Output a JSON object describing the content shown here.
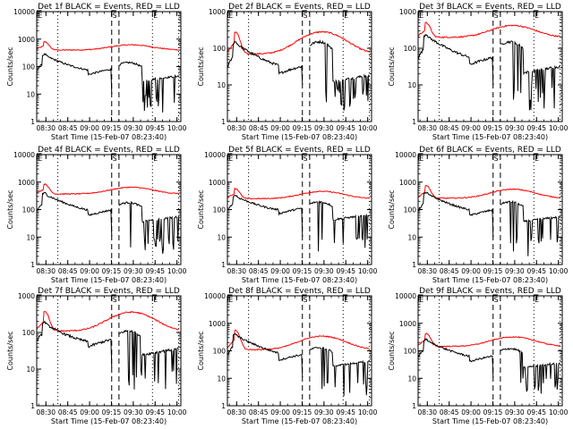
{
  "window": {
    "title": "HXR detector count rate plots"
  },
  "chart_data": [
    {
      "type": "line",
      "title": "Det 1f BLACK = Events, RED = LLD",
      "xlabel": "Start Time (15-Feb-07 08:23:40)",
      "ylabel": "Counts/sec",
      "ylim": [
        1,
        10000
      ],
      "yscale": "log",
      "series": [
        {
          "name": "Events",
          "color": "#000000"
        },
        {
          "name": "LLD",
          "color": "#ff0000"
        }
      ],
      "profile": {
        "events": {
          "base": 50,
          "peak": 280,
          "mid": 140
        },
        "lld": {
          "base": 400,
          "peak": 800,
          "mid": 620
        }
      }
    },
    {
      "type": "line",
      "title": "Det 2f BLACK = Events, RED = LLD",
      "xlabel": "Start Time (15-Feb-07 08:23:40)",
      "ylabel": "Counts/sec",
      "ylim": [
        1,
        1000
      ],
      "yscale": "log",
      "series": [
        {
          "name": "Events",
          "color": "#000000"
        },
        {
          "name": "LLD",
          "color": "#ff0000"
        }
      ],
      "profile": {
        "events": {
          "base": 20,
          "peak": 150,
          "mid": 150
        },
        "lld": {
          "base": 70,
          "peak": 280,
          "mid": 280
        }
      }
    },
    {
      "type": "line",
      "title": "Det 3f BLACK = Events, RED = LLD",
      "xlabel": "Start Time (15-Feb-07 08:23:40)",
      "ylabel": "Counts/sec",
      "ylim": [
        1,
        1000
      ],
      "yscale": "log",
      "series": [
        {
          "name": "Events",
          "color": "#000000"
        },
        {
          "name": "LLD",
          "color": "#ff0000"
        }
      ],
      "profile": {
        "events": {
          "base": 35,
          "peak": 240,
          "mid": 150
        },
        "lld": {
          "base": 200,
          "peak": 500,
          "mid": 420
        }
      }
    },
    {
      "type": "line",
      "title": "Det 4f BLACK = Events, RED = LLD",
      "xlabel": "Start Time (15-Feb-07 08:23:40)",
      "ylabel": "Counts/sec",
      "ylim": [
        1,
        10000
      ],
      "yscale": "log",
      "series": [
        {
          "name": "Events",
          "color": "#000000"
        },
        {
          "name": "LLD",
          "color": "#ff0000"
        }
      ],
      "profile": {
        "events": {
          "base": 60,
          "peak": 400,
          "mid": 180
        },
        "lld": {
          "base": 370,
          "peak": 850,
          "mid": 650
        }
      }
    },
    {
      "type": "line",
      "title": "Det 5f BLACK = Events, RED = LLD",
      "xlabel": "Start Time (15-Feb-07 08:23:40)",
      "ylabel": "Counts/sec",
      "ylim": [
        1,
        10000
      ],
      "yscale": "log",
      "series": [
        {
          "name": "Events",
          "color": "#000000"
        },
        {
          "name": "LLD",
          "color": "#ff0000"
        }
      ],
      "profile": {
        "events": {
          "base": 70,
          "peak": 330,
          "mid": 190
        },
        "lld": {
          "base": 250,
          "peak": 580,
          "mid": 460
        }
      }
    },
    {
      "type": "line",
      "title": "Det 6f BLACK = Events, RED = LLD",
      "xlabel": "Start Time (15-Feb-07 08:23:40)",
      "ylabel": "Counts/sec",
      "ylim": [
        1,
        10000
      ],
      "yscale": "log",
      "series": [
        {
          "name": "Events",
          "color": "#000000"
        },
        {
          "name": "LLD",
          "color": "#ff0000"
        }
      ],
      "profile": {
        "events": {
          "base": 60,
          "peak": 420,
          "mid": 190
        },
        "lld": {
          "base": 260,
          "peak": 750,
          "mid": 550
        }
      }
    },
    {
      "type": "line",
      "title": "Det 7f BLACK = Events, RED = LLD",
      "xlabel": "Start Time (15-Feb-07 08:23:40)",
      "ylabel": "Counts/sec",
      "ylim": [
        1,
        1000
      ],
      "yscale": "log",
      "series": [
        {
          "name": "Events",
          "color": "#000000"
        },
        {
          "name": "LLD",
          "color": "#ff0000"
        }
      ],
      "profile": {
        "events": {
          "base": 40,
          "peak": 190,
          "mid": 110
        },
        "lld": {
          "base": 110,
          "peak": 380,
          "mid": 360
        }
      }
    },
    {
      "type": "line",
      "title": "Det 8f BLACK = Events, RED = LLD",
      "xlabel": "Start Time (15-Feb-07 08:23:40)",
      "ylabel": "Counts/sec",
      "ylim": [
        1,
        10000
      ],
      "yscale": "log",
      "series": [
        {
          "name": "Events",
          "color": "#000000"
        },
        {
          "name": "LLD",
          "color": "#ff0000"
        }
      ],
      "profile": {
        "events": {
          "base": 45,
          "peak": 400,
          "mid": 130
        },
        "lld": {
          "base": 110,
          "peak": 550,
          "mid": 340
        }
      }
    },
    {
      "type": "line",
      "title": "Det 9f BLACK = Events, RED = LLD",
      "xlabel": "Start Time (15-Feb-07 08:23:40)",
      "ylabel": "Counts/sec",
      "ylim": [
        1,
        10000
      ],
      "yscale": "log",
      "series": [
        {
          "name": "Events",
          "color": "#000000"
        },
        {
          "name": "LLD",
          "color": "#ff0000"
        }
      ],
      "profile": {
        "events": {
          "base": 40,
          "peak": 260,
          "mid": 120
        },
        "lld": {
          "base": 145,
          "peak": 430,
          "mid": 320
        }
      }
    }
  ],
  "shared": {
    "xticks": [
      "08:30",
      "08:45",
      "09:00",
      "09:15",
      "09:30",
      "09:45",
      "10:00"
    ],
    "xtick_minutes": [
      6.33,
      21.33,
      36.33,
      51.33,
      66.33,
      81.33,
      96.33
    ],
    "x_range_minutes": [
      0,
      99
    ],
    "yticks_10000": [
      "1",
      "10",
      "100",
      "1000",
      "10000"
    ],
    "yticks_1000": [
      "1",
      "10",
      "100",
      "1000"
    ],
    "markers": {
      "E": "E",
      "S": "S"
    },
    "dotted_lines_min": [
      14.5,
      79.5,
      97.5
    ],
    "dashed_lines_min": [
      51.5,
      56.5
    ],
    "events_color": "#000000",
    "lld_color": "#ff0000"
  }
}
